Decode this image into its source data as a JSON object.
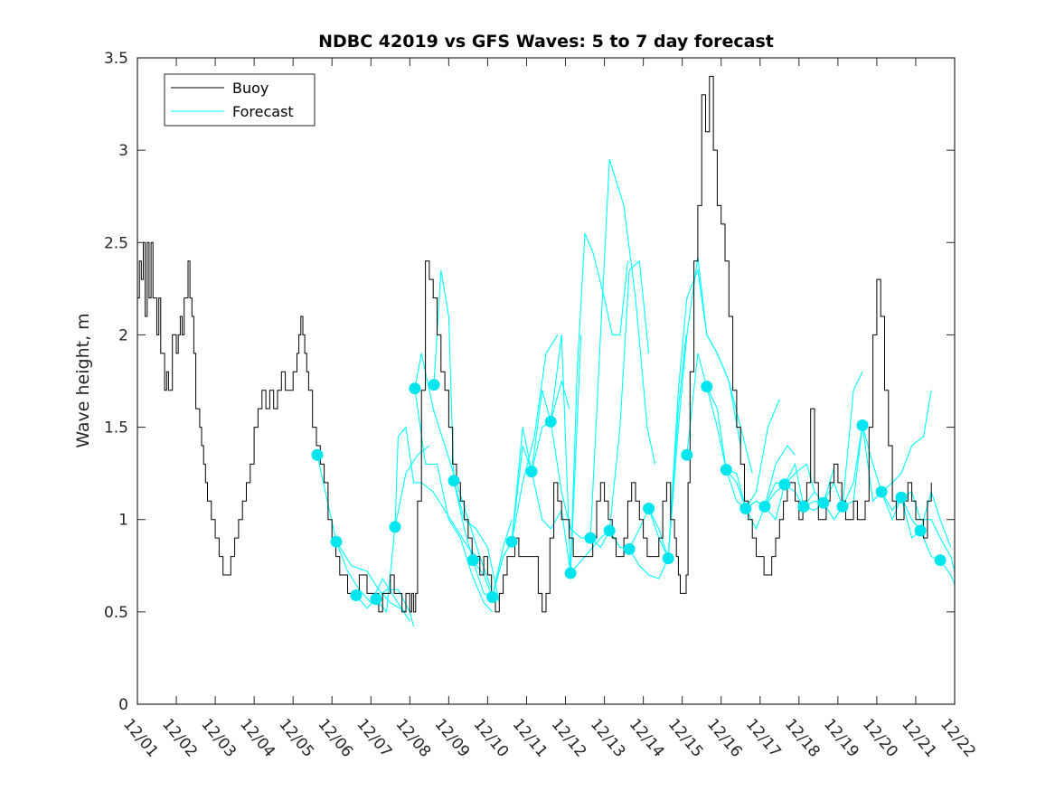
{
  "chart_data": {
    "type": "line",
    "title": "NDBC 42019 vs GFS Waves: 5 to 7 day forecast",
    "xlabel": "",
    "ylabel": "Wave height, m",
    "ylim": [
      0,
      3.5
    ],
    "xlim_days": [
      0,
      21
    ],
    "yticks": [
      0,
      0.5,
      1,
      1.5,
      2,
      2.5,
      3,
      3.5
    ],
    "ytick_labels": [
      "0",
      "0.5",
      "1",
      "1.5",
      "2",
      "2.5",
      "3",
      "3.5"
    ],
    "xtick_labels": [
      "12/01",
      "12/02",
      "12/03",
      "12/04",
      "12/05",
      "12/06",
      "12/07",
      "12/08",
      "12/09",
      "12/10",
      "12/11",
      "12/12",
      "12/13",
      "12/14",
      "12/15",
      "12/16",
      "12/17",
      "12/18",
      "12/19",
      "12/20",
      "12/21",
      "12/22"
    ],
    "grid": false,
    "legend": {
      "position": "top-left",
      "entries": [
        {
          "label": "Buoy",
          "color": "#000000"
        },
        {
          "label": "Forecast",
          "color": "#00ffff"
        }
      ]
    },
    "colors": {
      "buoy": "#000000",
      "forecast": "#00ffff",
      "marker": "#00e5ee",
      "axis": "#262626"
    },
    "buoy": {
      "name": "Buoy",
      "x_days": [
        0,
        0.05,
        0.1,
        0.15,
        0.2,
        0.25,
        0.3,
        0.35,
        0.4,
        0.45,
        0.5,
        0.55,
        0.6,
        0.7,
        0.75,
        0.8,
        0.9,
        1.0,
        1.05,
        1.1,
        1.15,
        1.2,
        1.3,
        1.35,
        1.4,
        1.45,
        1.5,
        1.6,
        1.65,
        1.7,
        1.75,
        1.8,
        1.9,
        2.0,
        2.1,
        2.2,
        2.3,
        2.4,
        2.5,
        2.6,
        2.7,
        2.8,
        2.9,
        3.0,
        3.1,
        3.2,
        3.3,
        3.4,
        3.5,
        3.6,
        3.7,
        3.8,
        3.9,
        4.0,
        4.1,
        4.15,
        4.2,
        4.25,
        4.3,
        4.35,
        4.4,
        4.5,
        4.6,
        4.7,
        4.8,
        4.9,
        5.0,
        5.1,
        5.2,
        5.3,
        5.4,
        5.5,
        5.6,
        5.7,
        5.8,
        5.9,
        6.0,
        6.1,
        6.2,
        6.3,
        6.4,
        6.5,
        6.6,
        6.7,
        6.8,
        6.9,
        7.0,
        7.05,
        7.1,
        7.15,
        7.2,
        7.3,
        7.4,
        7.5,
        7.6,
        7.7,
        7.8,
        7.9,
        8.0,
        8.1,
        8.2,
        8.3,
        8.4,
        8.5,
        8.6,
        8.7,
        8.8,
        8.9,
        9.0,
        9.1,
        9.2,
        9.3,
        9.4,
        9.5,
        9.6,
        9.7,
        9.8,
        9.9,
        10.0,
        10.1,
        10.2,
        10.3,
        10.4,
        10.5,
        10.6,
        10.7,
        10.8,
        10.9,
        11.0,
        11.1,
        11.2,
        11.3,
        11.4,
        11.5,
        11.6,
        11.7,
        11.8,
        11.9,
        12.0,
        12.1,
        12.2,
        12.3,
        12.4,
        12.5,
        12.6,
        12.7,
        12.8,
        12.9,
        13.0,
        13.1,
        13.2,
        13.3,
        13.4,
        13.5,
        13.6,
        13.7,
        13.8,
        13.85,
        13.9,
        13.95,
        14.0,
        14.05,
        14.1,
        14.15,
        14.2,
        14.3,
        14.4,
        14.5,
        14.6,
        14.7,
        14.8,
        14.9,
        15.0,
        15.1,
        15.2,
        15.3,
        15.4,
        15.5,
        15.6,
        15.7,
        15.8,
        15.9,
        16.0,
        16.1,
        16.2,
        16.3,
        16.4,
        16.5,
        16.6,
        16.7,
        16.8,
        16.9,
        17.0,
        17.1,
        17.2,
        17.3,
        17.4,
        17.5,
        17.6,
        17.7,
        17.8,
        17.9,
        18.0,
        18.1,
        18.2,
        18.3,
        18.4,
        18.5,
        18.6,
        18.7,
        18.8,
        18.9,
        19.0,
        19.1,
        19.2,
        19.3,
        19.4,
        19.5,
        19.6,
        19.7,
        19.8,
        19.9,
        20.0,
        20.1,
        20.2,
        20.3,
        20.4
      ],
      "values": [
        2.2,
        2.4,
        2.3,
        2.5,
        2.1,
        2.5,
        2.2,
        2.5,
        2.2,
        2.2,
        2.0,
        2.2,
        1.9,
        1.7,
        1.8,
        1.7,
        2.0,
        1.9,
        2.0,
        2.1,
        2.0,
        2.2,
        2.4,
        2.2,
        2.1,
        1.9,
        1.6,
        1.5,
        1.4,
        1.3,
        1.2,
        1.1,
        1.0,
        0.9,
        0.8,
        0.7,
        0.7,
        0.8,
        0.9,
        1.0,
        1.1,
        1.2,
        1.3,
        1.5,
        1.6,
        1.7,
        1.6,
        1.7,
        1.6,
        1.7,
        1.8,
        1.7,
        1.7,
        1.8,
        1.9,
        2.0,
        2.1,
        2.0,
        1.9,
        1.8,
        1.7,
        1.5,
        1.4,
        1.3,
        1.2,
        1.0,
        0.9,
        0.8,
        0.7,
        0.7,
        0.6,
        0.6,
        0.6,
        0.7,
        0.7,
        0.6,
        0.6,
        0.6,
        0.5,
        0.6,
        0.6,
        0.7,
        0.6,
        0.6,
        0.5,
        0.6,
        0.5,
        0.6,
        0.5,
        0.6,
        1.1,
        1.7,
        2.4,
        2.3,
        2.2,
        2.0,
        1.8,
        1.7,
        1.5,
        1.3,
        1.2,
        1.1,
        1.0,
        0.9,
        0.8,
        0.8,
        0.7,
        0.8,
        0.7,
        0.6,
        0.5,
        0.6,
        0.7,
        0.8,
        0.8,
        0.9,
        0.8,
        0.8,
        0.8,
        0.8,
        0.8,
        0.6,
        0.5,
        0.6,
        0.9,
        1.2,
        1.1,
        1.0,
        1.0,
        0.9,
        0.8,
        0.8,
        0.8,
        0.8,
        0.8,
        0.9,
        1.1,
        1.2,
        1.1,
        1.0,
        0.9,
        0.8,
        0.8,
        0.9,
        1.1,
        1.2,
        1.1,
        1.0,
        0.9,
        0.8,
        0.8,
        0.8,
        0.9,
        1.1,
        1.2,
        1.0,
        0.9,
        0.8,
        0.7,
        0.6,
        0.6,
        0.6,
        0.7,
        1.2,
        1.8,
        2.4,
        2.7,
        3.3,
        3.1,
        3.4,
        3.0,
        2.7,
        2.6,
        2.4,
        2.1,
        1.7,
        1.5,
        1.3,
        1.1,
        1.0,
        0.9,
        0.8,
        0.8,
        0.7,
        0.7,
        0.8,
        0.9,
        1.0,
        1.1,
        1.2,
        1.2,
        1.1,
        1.0,
        1.1,
        1.2,
        1.6,
        1.2,
        1.0,
        1.0,
        1.1,
        1.2,
        1.3,
        1.2,
        1.1,
        1.0,
        1.0,
        1.1,
        1.0,
        1.0,
        1.1,
        1.5,
        2.0,
        2.3,
        2.1,
        1.7,
        1.4,
        1.1,
        1.0,
        1.0,
        1.1,
        1.2,
        1.1,
        1.0,
        1.0,
        0.9,
        1.1,
        1.2,
        1.2
      ]
    },
    "forecast_markers": {
      "x_days": [
        4.62,
        5.11,
        5.62,
        6.13,
        6.62,
        7.13,
        7.62,
        8.13,
        8.62,
        9.12,
        9.62,
        10.13,
        10.62,
        11.13,
        11.64,
        12.13,
        12.64,
        13.14,
        13.64,
        14.12,
        14.63,
        15.13,
        15.63,
        16.12,
        16.63,
        17.12,
        17.63,
        18.12,
        18.63,
        19.12,
        19.63,
        20.12,
        20.63
      ],
      "values": [
        1.35,
        0.88,
        0.59,
        0.57,
        0.96,
        1.71,
        1.73,
        1.21,
        0.78,
        0.58,
        0.88,
        1.26,
        1.53,
        0.71,
        0.9,
        0.94,
        0.84,
        1.06,
        0.79,
        1.35,
        1.72,
        1.27,
        1.06,
        1.07,
        1.19,
        1.07,
        1.09,
        1.07,
        1.51,
        1.15,
        1.12,
        0.94,
        0.78
      ]
    },
    "forecast_segments": [
      {
        "x_days": [
          4.62,
          5.11,
          5.5,
          5.9,
          6.2,
          6.5,
          6.9
        ],
        "values": [
          1.35,
          0.88,
          0.75,
          0.72,
          0.62,
          0.55,
          0.5
        ]
      },
      {
        "x_days": [
          5.11,
          5.4,
          5.7,
          6.0,
          6.3,
          6.6,
          7.0
        ],
        "values": [
          0.88,
          0.72,
          0.62,
          0.55,
          0.68,
          0.58,
          0.45
        ]
      },
      {
        "x_days": [
          5.62,
          5.9,
          6.13,
          6.4,
          6.7,
          7.0,
          7.1
        ],
        "values": [
          0.59,
          0.52,
          0.57,
          0.62,
          0.62,
          0.5,
          0.42
        ]
      },
      {
        "x_days": [
          6.13,
          6.4,
          6.62,
          6.9,
          7.2,
          7.5
        ],
        "values": [
          0.57,
          0.5,
          0.96,
          1.25,
          1.35,
          1.4
        ]
      },
      {
        "x_days": [
          6.62,
          6.7,
          6.9,
          7.1,
          7.3,
          7.6,
          7.9,
          8.2,
          8.5,
          8.8
        ],
        "values": [
          0.96,
          1.45,
          1.5,
          1.2,
          1.2,
          1.15,
          1.05,
          0.95,
          0.85,
          0.78
        ]
      },
      {
        "x_days": [
          7.13,
          7.3,
          7.6,
          7.9,
          8.2,
          8.5,
          8.8,
          9.1
        ],
        "values": [
          1.71,
          1.9,
          1.6,
          1.4,
          1.2,
          1.0,
          0.8,
          0.62
        ]
      },
      {
        "x_days": [
          7.13,
          7.4,
          7.7,
          8.0,
          8.3,
          8.6,
          8.9,
          9.12
        ],
        "values": [
          1.71,
          1.3,
          1.3,
          1.0,
          0.9,
          0.7,
          0.55,
          0.5
        ]
      },
      {
        "x_days": [
          7.62,
          7.8,
          8.0,
          8.13,
          8.4,
          8.7,
          9.0,
          9.3
        ],
        "values": [
          1.73,
          2.35,
          2.1,
          1.21,
          1.0,
          0.95,
          0.85,
          0.55
        ]
      },
      {
        "x_days": [
          8.13,
          8.4,
          8.62,
          8.9,
          9.12,
          9.4,
          9.62
        ],
        "values": [
          1.21,
          0.95,
          0.78,
          0.7,
          0.58,
          0.85,
          1.0
        ]
      },
      {
        "x_days": [
          8.62,
          8.9,
          9.12,
          9.4,
          9.62,
          9.9,
          10.2,
          10.5,
          10.8
        ],
        "values": [
          0.78,
          0.6,
          0.58,
          0.8,
          0.88,
          1.2,
          1.45,
          1.9,
          2.0
        ]
      },
      {
        "x_days": [
          9.12,
          9.4,
          9.62,
          9.9,
          10.13,
          10.4,
          10.62,
          10.9,
          11.1
        ],
        "values": [
          0.58,
          0.8,
          0.88,
          1.4,
          1.26,
          1.7,
          1.53,
          1.75,
          1.6
        ]
      },
      {
        "x_days": [
          9.62,
          9.9,
          10.13,
          10.4,
          10.62,
          10.9,
          11.13,
          11.4
        ],
        "values": [
          0.88,
          1.5,
          1.26,
          1.5,
          1.53,
          2.0,
          0.71,
          2.0
        ]
      },
      {
        "x_days": [
          10.13,
          10.4,
          10.62,
          10.9,
          11.13,
          11.3,
          11.5,
          11.7,
          12.0,
          12.2,
          12.4,
          12.6
        ],
        "values": [
          1.26,
          1.0,
          0.95,
          1.05,
          0.71,
          1.8,
          2.55,
          2.45,
          2.2,
          2.0,
          2.0,
          2.4
        ]
      },
      {
        "x_days": [
          10.62,
          10.9,
          11.13,
          11.4,
          11.64,
          11.9,
          12.13,
          12.5,
          12.8,
          13.1,
          13.3
        ],
        "values": [
          1.53,
          1.15,
          0.95,
          0.9,
          0.9,
          2.0,
          2.95,
          2.7,
          2.2,
          1.5,
          1.3
        ]
      },
      {
        "x_days": [
          11.13,
          11.5,
          11.9,
          12.13,
          12.4,
          12.64,
          12.9,
          13.14
        ],
        "values": [
          0.71,
          0.8,
          0.9,
          0.94,
          1.5,
          2.35,
          2.4,
          1.9
        ]
      },
      {
        "x_days": [
          11.64,
          11.9,
          12.13,
          12.4,
          12.64,
          12.9,
          13.14,
          13.4,
          13.64
        ],
        "values": [
          0.9,
          0.85,
          0.94,
          0.85,
          0.84,
          0.75,
          0.7,
          0.68,
          0.79
        ]
      },
      {
        "x_days": [
          12.13,
          12.4,
          12.64,
          12.9,
          13.14,
          13.4,
          13.64,
          13.9,
          14.1
        ],
        "values": [
          0.94,
          0.85,
          0.84,
          0.95,
          1.06,
          0.9,
          0.79,
          1.6,
          2.0
        ]
      },
      {
        "x_days": [
          13.14,
          13.4,
          13.64,
          13.9,
          14.12,
          14.4,
          14.63,
          14.9,
          15.2,
          15.5
        ],
        "values": [
          1.06,
          0.95,
          0.79,
          1.5,
          2.0,
          2.42,
          2.0,
          1.9,
          1.75,
          1.4
        ]
      },
      {
        "x_days": [
          13.64,
          13.9,
          14.12,
          14.4,
          14.63,
          14.9,
          15.2,
          15.5,
          15.8
        ],
        "values": [
          0.79,
          1.7,
          2.2,
          2.35,
          2.0,
          1.9,
          1.75,
          1.5,
          1.25
        ]
      },
      {
        "x_days": [
          14.12,
          14.4,
          14.63,
          14.9,
          15.13,
          15.4,
          15.63,
          15.9,
          16.2,
          16.5
        ],
        "values": [
          1.35,
          1.9,
          1.72,
          1.5,
          1.27,
          1.25,
          1.06,
          1.15,
          1.5,
          1.65
        ]
      },
      {
        "x_days": [
          14.63,
          14.9,
          15.13,
          15.4,
          15.63,
          15.9,
          16.12,
          16.4,
          16.7,
          16.9
        ],
        "values": [
          1.72,
          1.6,
          1.27,
          1.2,
          1.06,
          1.1,
          1.07,
          1.3,
          1.4,
          1.35
        ]
      },
      {
        "x_days": [
          15.13,
          15.4,
          15.63,
          15.9,
          16.12,
          16.4,
          16.63,
          16.9,
          17.2,
          17.4
        ],
        "values": [
          1.27,
          1.1,
          1.06,
          1.1,
          1.07,
          1.2,
          1.19,
          1.25,
          1.3,
          1.15
        ]
      },
      {
        "x_days": [
          15.63,
          15.9,
          16.12,
          16.4,
          16.63,
          16.9,
          17.12,
          17.4,
          17.63,
          17.9
        ],
        "values": [
          1.06,
          0.95,
          1.07,
          1.15,
          1.19,
          1.15,
          1.07,
          1.15,
          1.09,
          1.28
        ]
      },
      {
        "x_days": [
          16.12,
          16.4,
          16.63,
          16.9,
          17.12,
          17.4,
          17.63,
          17.9,
          18.12,
          18.4,
          18.63
        ],
        "values": [
          1.07,
          1.0,
          1.19,
          1.3,
          1.07,
          1.1,
          1.09,
          1.0,
          1.07,
          1.7,
          1.8
        ]
      },
      {
        "x_days": [
          17.12,
          17.4,
          17.63,
          17.9,
          18.12,
          18.4,
          18.63,
          18.9,
          19.12,
          19.4,
          19.63,
          19.9,
          20.2,
          20.4
        ],
        "values": [
          1.07,
          1.05,
          1.09,
          1.2,
          1.07,
          1.2,
          1.51,
          1.3,
          1.15,
          1.2,
          1.25,
          1.4,
          1.45,
          1.7
        ]
      },
      {
        "x_days": [
          18.12,
          18.4,
          18.63,
          18.9,
          19.12,
          19.4,
          19.63,
          19.9,
          20.12,
          20.4,
          20.63,
          20.9
        ],
        "values": [
          1.07,
          1.1,
          1.51,
          1.1,
          1.15,
          1.05,
          1.12,
          1.0,
          0.94,
          1.15,
          1.0,
          0.85
        ]
      },
      {
        "x_days": [
          19.12,
          19.4,
          19.63,
          19.9,
          20.12,
          20.4,
          20.63,
          20.9,
          21.0
        ],
        "values": [
          1.15,
          1.0,
          1.12,
          0.9,
          0.94,
          0.8,
          0.78,
          0.7,
          0.65
        ]
      },
      {
        "x_days": [
          19.63,
          19.9,
          20.12,
          20.4,
          20.63,
          20.9,
          21.0
        ],
        "values": [
          1.12,
          1.15,
          1.0,
          1.0,
          0.9,
          0.8,
          0.72
        ]
      }
    ]
  }
}
